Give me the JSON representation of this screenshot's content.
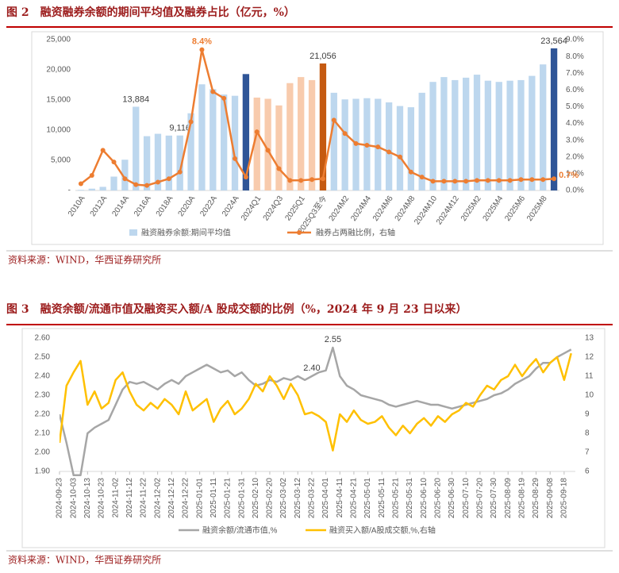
{
  "chart_data": [
    {
      "type": "combo",
      "title": "图 2　融资融券余额的期间平均值及融券占比（亿元，%）",
      "source": "资料来源：WIND，华西证券研究所",
      "categories": [
        "2010A",
        null,
        "2012A",
        null,
        "2014A",
        null,
        "2016A",
        null,
        "2018A",
        null,
        "2020A",
        null,
        "2022A",
        null,
        "2024A",
        null,
        "2024Q1",
        null,
        "2024Q3",
        null,
        "2025Q1",
        null,
        "2025Q3至今",
        null,
        "2024M2",
        null,
        "2024M4",
        null,
        "2024M6",
        null,
        "2024M8",
        null,
        "2024M10",
        null,
        "2024M12",
        null,
        "2025M2",
        null,
        "2025M4",
        null,
        "2025M6",
        null,
        "2025M8",
        null
      ],
      "series": [
        {
          "name": "融资融券余额:期间平均值",
          "type": "bar",
          "color": "#bdd7ee",
          "colors": [
            "#bdd7ee",
            "#bdd7ee",
            "#bdd7ee",
            "#bdd7ee",
            "#bdd7ee",
            "#bdd7ee",
            "#bdd7ee",
            "#bdd7ee",
            "#bdd7ee",
            "#bdd7ee",
            "#bdd7ee",
            "#bdd7ee",
            "#bdd7ee",
            "#bdd7ee",
            "#bdd7ee",
            "#2f5597",
            "#f8cbad",
            "#f8cbad",
            "#f8cbad",
            "#f8cbad",
            "#f8cbad",
            "#f8cbad",
            "#c55a11",
            "#bdd7ee",
            "#bdd7ee",
            "#bdd7ee",
            "#bdd7ee",
            "#bdd7ee",
            "#bdd7ee",
            "#bdd7ee",
            "#bdd7ee",
            "#bdd7ee",
            "#bdd7ee",
            "#bdd7ee",
            "#bdd7ee",
            "#bdd7ee",
            "#bdd7ee",
            "#bdd7ee",
            "#bdd7ee",
            "#bdd7ee",
            "#bdd7ee",
            "#bdd7ee",
            "#bdd7ee",
            "#2f5597"
          ],
          "values": [
            100,
            300,
            600,
            2300,
            5100,
            13884,
            9000,
            9400,
            9100,
            9116,
            12800,
            17600,
            16800,
            15900,
            15700,
            19300,
            15400,
            15200,
            14100,
            17800,
            18800,
            18300,
            21056,
            16200,
            15100,
            15200,
            15300,
            15200,
            14600,
            14000,
            13800,
            16200,
            18000,
            18800,
            18300,
            18700,
            19200,
            18200,
            18000,
            18200,
            18300,
            19000,
            20900,
            23564
          ],
          "value_labels": [
            null,
            null,
            null,
            null,
            null,
            "13,884",
            null,
            null,
            null,
            "9,116",
            null,
            null,
            null,
            null,
            null,
            null,
            null,
            null,
            null,
            null,
            null,
            null,
            "21,056",
            null,
            null,
            null,
            null,
            null,
            null,
            null,
            null,
            null,
            null,
            null,
            null,
            null,
            null,
            null,
            null,
            null,
            null,
            null,
            null,
            "23,564"
          ]
        },
        {
          "name": "融券占两融比例，右轴",
          "type": "line",
          "axis": "y2",
          "color": "#ed7d31",
          "values": [
            0.4,
            0.9,
            2.4,
            1.7,
            0.7,
            0.35,
            0.3,
            0.5,
            0.7,
            1.1,
            4.1,
            8.4,
            5.9,
            5.5,
            1.9,
            0.8,
            3.5,
            2.4,
            1.3,
            0.6,
            0.6,
            0.65,
            0.7,
            4.2,
            3.4,
            2.8,
            2.7,
            2.6,
            2.3,
            2.0,
            1.1,
            0.8,
            0.55,
            0.55,
            0.55,
            0.55,
            0.6,
            0.6,
            0.6,
            0.6,
            0.65,
            0.65,
            0.65,
            0.7
          ],
          "value_labels": [
            null,
            null,
            null,
            null,
            null,
            null,
            null,
            null,
            null,
            null,
            null,
            "8.4%",
            null,
            null,
            null,
            null,
            null,
            null,
            null,
            null,
            null,
            null,
            null,
            null,
            null,
            null,
            null,
            null,
            null,
            null,
            null,
            null,
            null,
            null,
            null,
            null,
            null,
            null,
            null,
            null,
            null,
            null,
            null,
            "0.7%"
          ]
        }
      ],
      "ylim": [
        0,
        25000
      ],
      "yticks": [
        {
          "value": 0,
          "label": "-"
        },
        {
          "value": 5000,
          "label": "5,000"
        },
        {
          "value": 10000,
          "label": "10,000"
        },
        {
          "value": 15000,
          "label": "15,000"
        },
        {
          "value": 20000,
          "label": "20,000"
        },
        {
          "value": 25000,
          "label": "25,000"
        }
      ],
      "y2lim": [
        0,
        9
      ],
      "y2ticks": [
        {
          "value": 0,
          "label": "0.0%"
        },
        {
          "value": 1,
          "label": "1.0%"
        },
        {
          "value": 2,
          "label": "2.0%"
        },
        {
          "value": 3,
          "label": "3.0%"
        },
        {
          "value": 4,
          "label": "4.0%"
        },
        {
          "value": 5,
          "label": "5.0%"
        },
        {
          "value": 6,
          "label": "6.0%"
        },
        {
          "value": 7,
          "label": "7.0%"
        },
        {
          "value": 8,
          "label": "8.0%"
        },
        {
          "value": 9,
          "label": "9.0%"
        }
      ],
      "legend": "bottom"
    },
    {
      "type": "line",
      "title": "图 3　融资余额/流通市值及融资买入额/A 股成交额的比例（%，2024 年 9 月 23 日以来）",
      "source": "资料来源：WIND，华西证券研究所",
      "x": [
        "2024-09-23",
        "2024-09-28",
        "2024-10-03",
        "2024-10-08",
        "2024-10-13",
        "2024-10-18",
        "2024-10-23",
        "2024-10-28",
        "2024-11-02",
        "2024-11-07",
        "2024-11-12",
        "2024-11-17",
        "2024-11-22",
        "2024-11-27",
        "2024-12-02",
        "2024-12-07",
        "2024-12-12",
        "2024-12-17",
        "2024-12-22",
        "2024-12-27",
        "2025-01-01",
        "2025-01-06",
        "2025-01-11",
        "2025-01-16",
        "2025-01-21",
        "2025-01-26",
        "2025-01-31",
        "2025-02-05",
        "2025-02-10",
        "2025-02-15",
        "2025-02-20",
        "2025-02-25",
        "2025-03-02",
        "2025-03-07",
        "2025-03-12",
        "2025-03-17",
        "2025-03-22",
        "2025-03-27",
        "2025-04-01",
        "2025-04-06",
        "2025-04-11",
        "2025-04-16",
        "2025-04-21",
        "2025-04-26",
        "2025-05-01",
        "2025-05-06",
        "2025-05-11",
        "2025-05-16",
        "2025-05-21",
        "2025-05-26",
        "2025-05-31",
        "2025-06-05",
        "2025-06-10",
        "2025-06-15",
        "2025-06-20",
        "2025-06-25",
        "2025-06-30",
        "2025-07-05",
        "2025-07-10",
        "2025-07-15",
        "2025-07-20",
        "2025-07-25",
        "2025-07-30",
        "2025-08-04",
        "2025-08-09",
        "2025-08-14",
        "2025-08-19",
        "2025-08-24",
        "2025-08-29",
        "2025-09-03",
        "2025-09-08",
        "2025-09-13",
        "2025-09-18",
        "2025-09-23"
      ],
      "series": [
        {
          "name": "融资余额/流通市值,%",
          "color": "#a6a6a6",
          "values": [
            2.2,
            2.05,
            1.88,
            1.88,
            2.1,
            2.13,
            2.15,
            2.17,
            2.25,
            2.33,
            2.37,
            2.36,
            2.37,
            2.35,
            2.33,
            2.36,
            2.38,
            2.36,
            2.4,
            2.42,
            2.44,
            2.46,
            2.44,
            2.42,
            2.43,
            2.4,
            2.42,
            2.38,
            2.35,
            2.36,
            2.38,
            2.37,
            2.39,
            2.38,
            2.4,
            2.38,
            2.4,
            2.42,
            2.43,
            2.55,
            2.4,
            2.35,
            2.33,
            2.3,
            2.29,
            2.28,
            2.27,
            2.25,
            2.24,
            2.25,
            2.26,
            2.27,
            2.26,
            2.25,
            2.25,
            2.24,
            2.23,
            2.24,
            2.25,
            2.26,
            2.27,
            2.28,
            2.3,
            2.31,
            2.33,
            2.36,
            2.38,
            2.4,
            2.44,
            2.47,
            2.47,
            2.5,
            2.52,
            2.54
          ],
          "value_labels": [
            null,
            null,
            null,
            null,
            null,
            null,
            null,
            null,
            null,
            null,
            null,
            null,
            null,
            null,
            null,
            null,
            null,
            null,
            null,
            null,
            null,
            null,
            null,
            null,
            null,
            null,
            null,
            null,
            null,
            null,
            null,
            null,
            null,
            null,
            null,
            null,
            "2.40",
            null,
            null,
            "2.55",
            null,
            null,
            null,
            null,
            null,
            null,
            null,
            null,
            null,
            null,
            null,
            null,
            null,
            null,
            null,
            null,
            null,
            null,
            null,
            null,
            null,
            null,
            null,
            null,
            null,
            null,
            null,
            null,
            null,
            null,
            null,
            null,
            null,
            null
          ]
        },
        {
          "name": "融资买入额/A股成交额,%,右轴",
          "color": "#ffc000",
          "axis": "y2",
          "values": [
            7.5,
            10.5,
            11.2,
            11.8,
            9.5,
            10.2,
            9.3,
            9.6,
            10.8,
            11.2,
            10.2,
            9.5,
            9.2,
            9.6,
            9.3,
            9.8,
            9.5,
            9.0,
            10.2,
            9.2,
            9.5,
            9.8,
            8.6,
            9.3,
            9.7,
            9.0,
            9.3,
            9.8,
            10.6,
            10.2,
            11.0,
            10.5,
            9.8,
            10.6,
            10.0,
            9.0,
            9.1,
            8.9,
            8.6,
            7.1,
            9.0,
            8.6,
            9.2,
            8.7,
            8.5,
            8.6,
            8.9,
            8.3,
            7.9,
            8.4,
            8.0,
            8.5,
            8.8,
            8.4,
            8.9,
            8.6,
            9.0,
            9.2,
            9.6,
            9.4,
            10.0,
            10.5,
            10.3,
            10.8,
            11.0,
            11.6,
            11.0,
            11.5,
            11.9,
            11.2,
            11.7,
            12.0,
            10.8,
            12.2
          ]
        }
      ],
      "xlim": [
        "2024-09-23",
        "2025-09-26"
      ],
      "xticks": [
        "2024-09-23",
        "2024-10-03",
        "2024-10-13",
        "2024-10-23",
        "2024-11-02",
        "2024-11-12",
        "2024-11-22",
        "2024-12-02",
        "2024-12-12",
        "2024-12-22",
        "2025-01-01",
        "2025-01-11",
        "2025-01-21",
        "2025-01-31",
        "2025-02-10",
        "2025-02-20",
        "2025-03-02",
        "2025-03-12",
        "2025-03-22",
        "2025-04-01",
        "2025-04-11",
        "2025-04-21",
        "2025-05-01",
        "2025-05-11",
        "2025-05-21",
        "2025-05-31",
        "2025-06-10",
        "2025-06-20",
        "2025-06-30",
        "2025-07-10",
        "2025-07-20",
        "2025-07-30",
        "2025-08-09",
        "2025-08-19",
        "2025-08-29",
        "2025-09-08",
        "2025-09-18"
      ],
      "ylim": [
        1.9,
        2.6
      ],
      "yticks": [
        {
          "value": 1.9,
          "label": "1.90"
        },
        {
          "value": 2.0,
          "label": "2.00"
        },
        {
          "value": 2.1,
          "label": "2.10"
        },
        {
          "value": 2.2,
          "label": "2.20"
        },
        {
          "value": 2.3,
          "label": "2.30"
        },
        {
          "value": 2.4,
          "label": "2.40"
        },
        {
          "value": 2.5,
          "label": "2.50"
        },
        {
          "value": 2.6,
          "label": "2.60"
        }
      ],
      "y2lim": [
        6,
        13
      ],
      "y2ticks": [
        6,
        7,
        8,
        9,
        10,
        11,
        12,
        13
      ],
      "legend": "bottom"
    }
  ]
}
